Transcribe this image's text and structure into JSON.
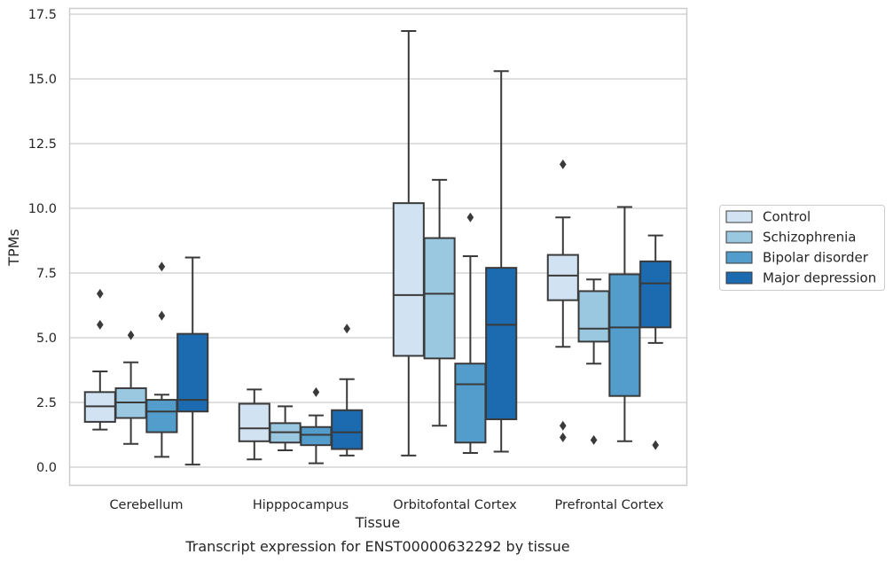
{
  "chart_data": {
    "type": "box",
    "title": "",
    "caption": "Transcript expression for ENST00000632292 by tissue",
    "xlabel": "Tissue",
    "ylabel": "TPMs",
    "ylim": [
      -0.7,
      17.7
    ],
    "yticks": [
      0.0,
      2.5,
      5.0,
      7.5,
      10.0,
      12.5,
      15.0,
      17.5
    ],
    "ytick_labels": [
      "0.0",
      "2.5",
      "5.0",
      "7.5",
      "10.0",
      "12.5",
      "15.0",
      "17.5"
    ],
    "grid": "horizontal",
    "legend_position": "right",
    "categories": [
      "Cerebellum",
      "Hipppocampus",
      "Orbitofontal Cortex",
      "Prefrontal Cortex"
    ],
    "series": [
      {
        "name": "Control",
        "color": "#d1e2f2",
        "boxes": [
          {
            "whislo": 1.45,
            "q1": 1.75,
            "med": 2.35,
            "q3": 2.9,
            "whishi": 3.7,
            "fliers": [
              5.5,
              6.7
            ]
          },
          {
            "whislo": 0.3,
            "q1": 1.0,
            "med": 1.5,
            "q3": 2.45,
            "whishi": 3.0,
            "fliers": []
          },
          {
            "whislo": 0.45,
            "q1": 4.3,
            "med": 6.65,
            "q3": 10.2,
            "whishi": 16.85,
            "fliers": []
          },
          {
            "whislo": 4.65,
            "q1": 6.45,
            "med": 7.4,
            "q3": 8.2,
            "whishi": 9.65,
            "fliers": [
              1.15,
              1.6,
              11.7
            ]
          }
        ]
      },
      {
        "name": "Schizophrenia",
        "color": "#9ac8e0",
        "boxes": [
          {
            "whislo": 0.9,
            "q1": 1.9,
            "med": 2.5,
            "q3": 3.05,
            "whishi": 4.05,
            "fliers": [
              5.1
            ]
          },
          {
            "whislo": 0.65,
            "q1": 0.95,
            "med": 1.35,
            "q3": 1.7,
            "whishi": 2.35,
            "fliers": []
          },
          {
            "whislo": 1.6,
            "q1": 4.2,
            "med": 6.7,
            "q3": 8.85,
            "whishi": 11.1,
            "fliers": []
          },
          {
            "whislo": 4.0,
            "q1": 4.85,
            "med": 5.35,
            "q3": 6.8,
            "whishi": 7.25,
            "fliers": [
              1.05
            ]
          }
        ]
      },
      {
        "name": "Bipolar disorder",
        "color": "#529dcc",
        "boxes": [
          {
            "whislo": 0.4,
            "q1": 1.35,
            "med": 2.15,
            "q3": 2.6,
            "whishi": 2.8,
            "fliers": [
              5.85,
              7.75
            ]
          },
          {
            "whislo": 0.15,
            "q1": 0.85,
            "med": 1.25,
            "q3": 1.55,
            "whishi": 2.0,
            "fliers": [
              2.9
            ]
          },
          {
            "whislo": 0.55,
            "q1": 0.95,
            "med": 3.2,
            "q3": 4.0,
            "whishi": 8.15,
            "fliers": [
              9.65
            ]
          },
          {
            "whislo": 1.0,
            "q1": 2.75,
            "med": 5.4,
            "q3": 7.45,
            "whishi": 10.05,
            "fliers": []
          }
        ]
      },
      {
        "name": "Major depression",
        "color": "#1c6aaf",
        "boxes": [
          {
            "whislo": 0.1,
            "q1": 2.15,
            "med": 2.6,
            "q3": 5.15,
            "whishi": 8.1,
            "fliers": []
          },
          {
            "whislo": 0.45,
            "q1": 0.7,
            "med": 1.35,
            "q3": 2.2,
            "whishi": 3.4,
            "fliers": [
              5.35
            ]
          },
          {
            "whislo": 0.6,
            "q1": 1.85,
            "med": 5.5,
            "q3": 7.7,
            "whishi": 15.3,
            "fliers": []
          },
          {
            "whislo": 4.8,
            "q1": 5.4,
            "med": 7.1,
            "q3": 7.95,
            "whishi": 8.95,
            "fliers": [
              0.85
            ]
          }
        ]
      }
    ]
  }
}
